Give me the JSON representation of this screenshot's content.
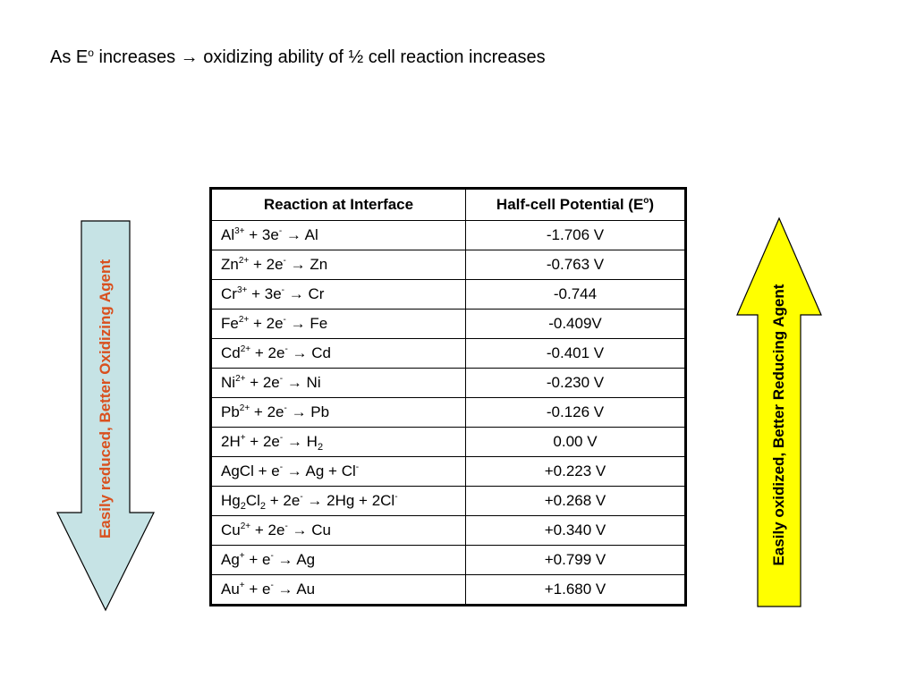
{
  "headline": {
    "prefix": "As E",
    "sup": "o",
    "middle": " increases ",
    "arrow": "→",
    "suffix": " oxidizing ability of ½ cell reaction increases"
  },
  "table": {
    "headers": {
      "reaction": "Reaction at Interface",
      "potential_prefix": "Half-cell Potential (E",
      "potential_sup": "o",
      "potential_suffix": ")"
    },
    "rows": [
      {
        "parts": [
          [
            "Al",
            ""
          ],
          [
            "3+",
            "sup"
          ],
          [
            " + 3e",
            ""
          ],
          [
            "-",
            "sup"
          ],
          [
            " → Al",
            ""
          ]
        ],
        "potential": "-1.706 V"
      },
      {
        "parts": [
          [
            "Zn",
            ""
          ],
          [
            "2+",
            "sup"
          ],
          [
            " + 2e",
            ""
          ],
          [
            "-",
            "sup"
          ],
          [
            " → Zn",
            ""
          ]
        ],
        "potential": "-0.763 V"
      },
      {
        "parts": [
          [
            "Cr",
            ""
          ],
          [
            "3+",
            "sup"
          ],
          [
            " + 3e",
            ""
          ],
          [
            "-",
            "sup"
          ],
          [
            " → Cr",
            ""
          ]
        ],
        "potential": "-0.744"
      },
      {
        "parts": [
          [
            "Fe",
            ""
          ],
          [
            "2+",
            "sup"
          ],
          [
            " + 2e",
            ""
          ],
          [
            "-",
            "sup"
          ],
          [
            " → Fe",
            ""
          ]
        ],
        "potential": "-0.409V"
      },
      {
        "parts": [
          [
            "Cd",
            ""
          ],
          [
            "2+",
            "sup"
          ],
          [
            " + 2e",
            ""
          ],
          [
            "-",
            "sup"
          ],
          [
            " → Cd",
            ""
          ]
        ],
        "potential": "-0.401 V"
      },
      {
        "parts": [
          [
            "Ni",
            ""
          ],
          [
            "2+",
            "sup"
          ],
          [
            " + 2e",
            ""
          ],
          [
            "-",
            "sup"
          ],
          [
            " → Ni",
            ""
          ]
        ],
        "potential": "-0.230 V"
      },
      {
        "parts": [
          [
            "Pb",
            ""
          ],
          [
            "2+",
            "sup"
          ],
          [
            " + 2e",
            ""
          ],
          [
            "-",
            "sup"
          ],
          [
            " → Pb",
            ""
          ]
        ],
        "potential": "-0.126 V"
      },
      {
        "parts": [
          [
            "2H",
            ""
          ],
          [
            "+",
            "sup"
          ],
          [
            " + 2e",
            ""
          ],
          [
            "-",
            "sup"
          ],
          [
            " → H",
            ""
          ],
          [
            "2",
            "sub"
          ]
        ],
        "potential": "0.00 V"
      },
      {
        "parts": [
          [
            "AgCl + e",
            ""
          ],
          [
            "-",
            "sup"
          ],
          [
            " → Ag + Cl",
            ""
          ],
          [
            "-",
            "sup"
          ]
        ],
        "potential": "+0.223 V"
      },
      {
        "parts": [
          [
            "Hg",
            ""
          ],
          [
            "2",
            "sub"
          ],
          [
            "Cl",
            ""
          ],
          [
            "2",
            "sub"
          ],
          [
            " + 2e",
            ""
          ],
          [
            "-",
            "sup"
          ],
          [
            " → 2Hg + 2Cl",
            ""
          ],
          [
            "-",
            "sup"
          ]
        ],
        "potential": "+0.268 V"
      },
      {
        "parts": [
          [
            "Cu",
            ""
          ],
          [
            "2+",
            "sup"
          ],
          [
            " + 2e",
            ""
          ],
          [
            "-",
            "sup"
          ],
          [
            " → Cu",
            ""
          ]
        ],
        "potential": "+0.340 V"
      },
      {
        "parts": [
          [
            "Ag",
            ""
          ],
          [
            "+",
            "sup"
          ],
          [
            " + e",
            ""
          ],
          [
            "-",
            "sup"
          ],
          [
            " → Ag",
            ""
          ]
        ],
        "potential": "+0.799 V"
      },
      {
        "parts": [
          [
            "Au",
            ""
          ],
          [
            "+",
            "sup"
          ],
          [
            " + e",
            ""
          ],
          [
            "-",
            "sup"
          ],
          [
            " → Au",
            ""
          ]
        ],
        "potential": "+1.680 V"
      }
    ]
  },
  "left_arrow": {
    "label": "Easily reduced, Better Oxidizing Agent",
    "fill": "#c6e3e5",
    "text_color": "#d9501e",
    "direction": "down"
  },
  "right_arrow": {
    "label": "Easily oxidized, Better Reducing Agent",
    "fill": "#ffff00",
    "text_color": "#000000",
    "direction": "up"
  }
}
